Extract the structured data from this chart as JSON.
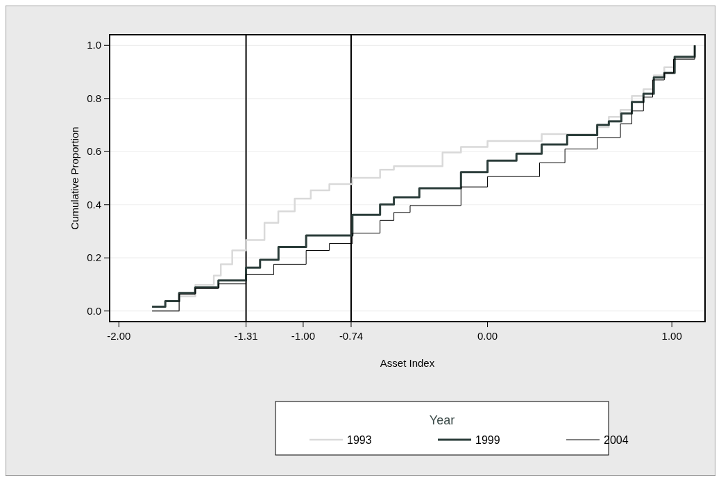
{
  "chart_data": {
    "type": "step",
    "xlabel": "Asset Index",
    "ylabel": "Cumulative Proportion",
    "legend_title": "Year",
    "legend": "bottom",
    "grid": "y",
    "xlim": [
      -2.05,
      1.18
    ],
    "ylim": [
      -0.04,
      1.04
    ],
    "xticks": [
      {
        "value": -2,
        "label": "-2.00"
      },
      {
        "value": -1.31,
        "label": "-1.31"
      },
      {
        "value": -1,
        "label": "-1.00"
      },
      {
        "value": -0.74,
        "label": "-0.74"
      },
      {
        "value": 0,
        "label": "0.00"
      },
      {
        "value": 1,
        "label": "1.00"
      }
    ],
    "yticks": [
      {
        "value": 0,
        "label": "0.0"
      },
      {
        "value": 0.2,
        "label": "0.2"
      },
      {
        "value": 0.4,
        "label": "0.4"
      },
      {
        "value": 0.6,
        "label": "0.6"
      },
      {
        "value": 0.8,
        "label": "0.8"
      },
      {
        "value": 1,
        "label": "1.0"
      }
    ],
    "ref_lines": [
      {
        "axis": "x",
        "value": -1.31,
        "color": "#000000"
      },
      {
        "axis": "x",
        "value": -0.74,
        "color": "#000000"
      }
    ],
    "series": [
      {
        "name": "1993",
        "color": "#d9d9d9",
        "x": [
          -1.82,
          -1.673,
          -1.585,
          -1.485,
          -1.447,
          -1.385,
          -1.31,
          -1.21,
          -1.135,
          -1.046,
          -0.959,
          -0.858,
          -0.733,
          -0.583,
          -0.508,
          -0.244,
          -0.144,
          0,
          0.294,
          0.595,
          0.658,
          0.721,
          0.783,
          0.846,
          0.902,
          0.959,
          1.015,
          1.124
        ],
        "values": [
          0,
          0.055,
          0.098,
          0.133,
          0.176,
          0.228,
          0.267,
          0.332,
          0.375,
          0.423,
          0.454,
          0.478,
          0.501,
          0.532,
          0.545,
          0.597,
          0.618,
          0.64,
          0.666,
          0.692,
          0.731,
          0.757,
          0.809,
          0.835,
          0.887,
          0.918,
          0.952,
          1
        ]
      },
      {
        "name": "1999",
        "color": "#2b3d3a",
        "x": [
          -1.82,
          -1.748,
          -1.673,
          -1.586,
          -1.46,
          -1.31,
          -1.234,
          -1.134,
          -0.984,
          -0.733,
          -0.583,
          -0.508,
          -0.37,
          -0.144,
          0,
          0.157,
          0.294,
          0.432,
          0.595,
          0.658,
          0.726,
          0.783,
          0.846,
          0.902,
          0.959,
          1.015,
          1.124
        ],
        "values": [
          0.016,
          0.037,
          0.068,
          0.089,
          0.115,
          0.163,
          0.193,
          0.241,
          0.284,
          0.362,
          0.401,
          0.428,
          0.462,
          0.523,
          0.566,
          0.592,
          0.627,
          0.662,
          0.701,
          0.714,
          0.744,
          0.787,
          0.818,
          0.879,
          0.896,
          0.957,
          1
        ]
      },
      {
        "name": "2004",
        "color": "#000000",
        "x": [
          -1.82,
          -1.673,
          -1.586,
          -1.46,
          -1.31,
          -1.16,
          -0.984,
          -0.858,
          -0.733,
          -0.583,
          -0.508,
          -0.42,
          -0.144,
          0,
          0.282,
          0.42,
          0.595,
          0.721,
          0.783,
          0.846,
          0.896,
          0.959,
          1.009,
          1.124
        ],
        "values": [
          0,
          0.063,
          0.085,
          0.102,
          0.137,
          0.176,
          0.228,
          0.254,
          0.293,
          0.341,
          0.371,
          0.397,
          0.467,
          0.506,
          0.558,
          0.61,
          0.653,
          0.705,
          0.753,
          0.805,
          0.87,
          0.896,
          0.948,
          1
        ]
      }
    ]
  }
}
